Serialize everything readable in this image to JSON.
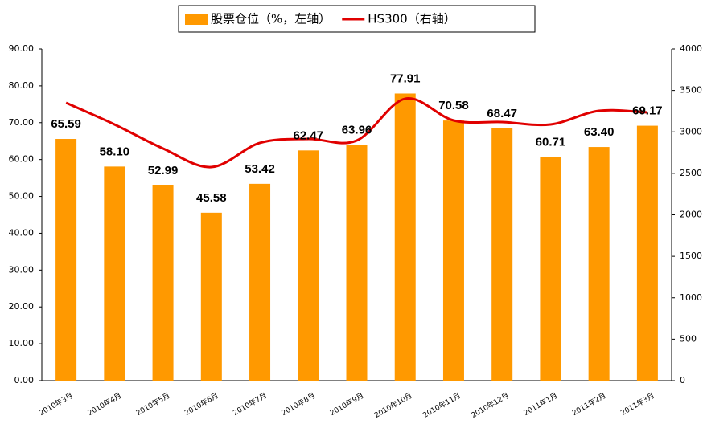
{
  "chart_data": {
    "type": "bar-line",
    "categories": [
      "2010年3月",
      "2010年4月",
      "2010年5月",
      "2010年6月",
      "2010年7月",
      "2010年8月",
      "2010年9月",
      "2010年10月",
      "2010年11月",
      "2010年12月",
      "2011年1月",
      "2011年2月",
      "2011年3月"
    ],
    "series": [
      {
        "name": "股票仓位（%，左轴）",
        "color": "#ff9900",
        "type": "bar",
        "values": [
          65.59,
          58.1,
          52.99,
          45.58,
          53.42,
          62.47,
          63.96,
          77.91,
          70.58,
          68.47,
          60.71,
          63.4,
          69.17
        ],
        "value_labels": [
          "65.59",
          "58.10",
          "52.99",
          "45.58",
          "53.42",
          "62.47",
          "63.96",
          "77.91",
          "70.58",
          "68.47",
          "60.71",
          "63.40",
          "69.17"
        ]
      },
      {
        "name": "HS300（右轴）",
        "color": "#e00000",
        "type": "line",
        "axis": "y2",
        "values": [
          3351,
          3090,
          2800,
          2576,
          2867,
          2915,
          2896,
          3400,
          3138,
          3119,
          3090,
          3254,
          3235
        ]
      }
    ],
    "ylim": [
      0,
      90
    ],
    "yticks": [
      {
        "value": 0,
        "label": "0.00"
      },
      {
        "value": 10,
        "label": "10.00"
      },
      {
        "value": 20,
        "label": "20.00"
      },
      {
        "value": 30,
        "label": "30.00"
      },
      {
        "value": 40,
        "label": "40.00"
      },
      {
        "value": 50,
        "label": "50.00"
      },
      {
        "value": 60,
        "label": "60.00"
      },
      {
        "value": 70,
        "label": "70.00"
      },
      {
        "value": 80,
        "label": "80.00"
      },
      {
        "value": 90,
        "label": "90.00"
      }
    ],
    "y2lim": [
      0,
      4000
    ],
    "y2ticks": [
      0,
      500,
      1000,
      1500,
      2000,
      2500,
      3000,
      3500,
      4000
    ],
    "grid": false,
    "legend": "top"
  }
}
